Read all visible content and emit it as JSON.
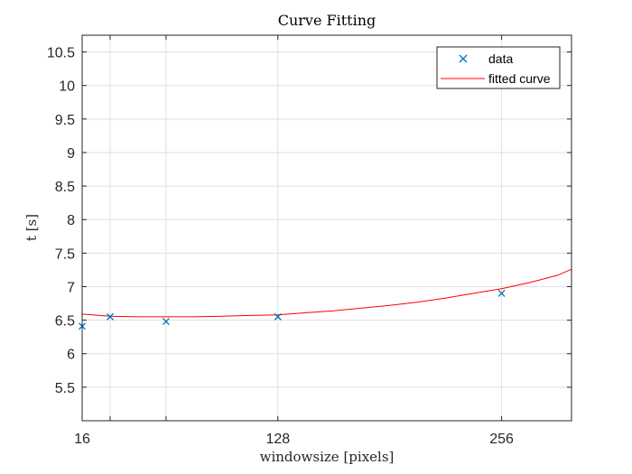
{
  "chart_data": {
    "type": "scatter",
    "title": "Curve Fitting",
    "xlabel": "windowsize [pixels]",
    "ylabel": "t [s]",
    "xlim": [
      16,
      296
    ],
    "ylim": [
      5.0,
      10.75
    ],
    "x_ticks": [
      16,
      128,
      256
    ],
    "x_tick_labels": [
      "16",
      "128",
      "256"
    ],
    "x_grid": [
      16,
      32,
      64,
      128,
      256
    ],
    "y_ticks": [
      5.5,
      6,
      6.5,
      7,
      7.5,
      8,
      8.5,
      9,
      9.5,
      10,
      10.5
    ],
    "y_tick_labels": [
      "5.5",
      "6",
      "6.5",
      "7",
      "7.5",
      "8",
      "8.5",
      "9",
      "9.5",
      "10",
      "10.5"
    ],
    "grid": true,
    "legend_position": "top-right",
    "series": [
      {
        "name": "data",
        "kind": "markers",
        "marker": "x",
        "color": "#0072BD",
        "x": [
          16,
          32,
          64,
          128,
          256
        ],
        "y": [
          6.41,
          6.55,
          6.48,
          6.55,
          6.9
        ]
      },
      {
        "name": "fitted curve",
        "kind": "line",
        "color": "#FF0000",
        "x": [
          16,
          32,
          48,
          64,
          80,
          96,
          112,
          128,
          144,
          160,
          176,
          192,
          208,
          224,
          240,
          256,
          272,
          288,
          296
        ],
        "y": [
          6.59,
          6.56,
          6.55,
          6.55,
          6.55,
          6.56,
          6.57,
          6.58,
          6.61,
          6.64,
          6.68,
          6.72,
          6.77,
          6.83,
          6.9,
          6.97,
          7.06,
          7.17,
          7.26
        ]
      }
    ]
  }
}
